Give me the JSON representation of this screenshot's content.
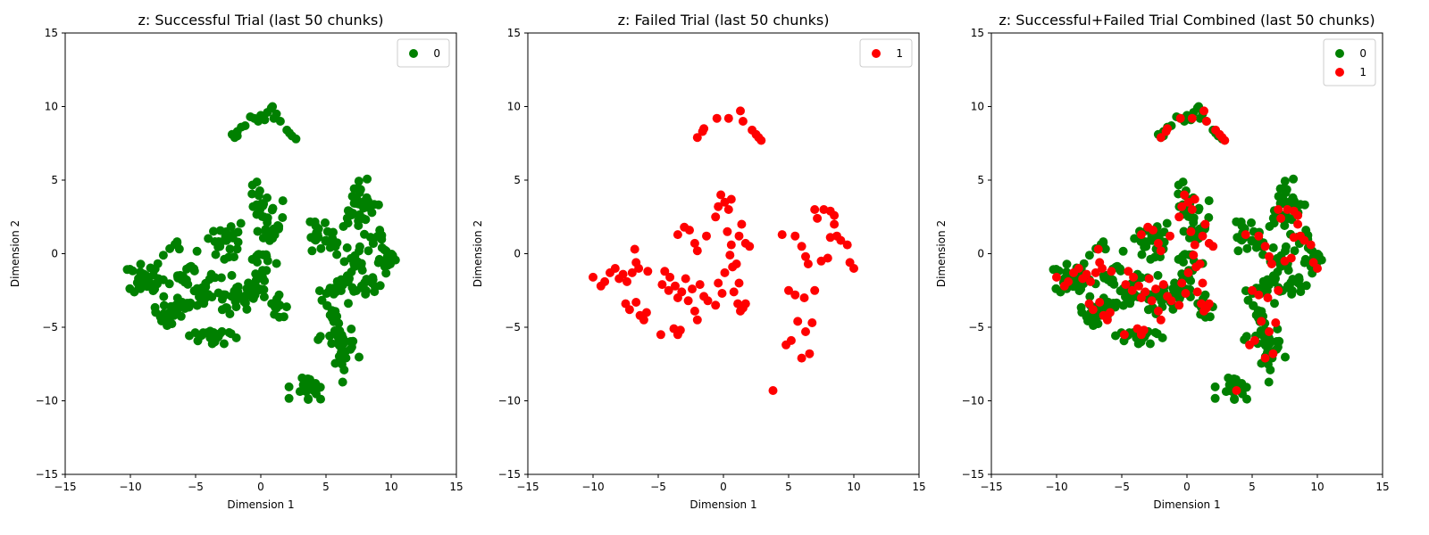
{
  "chart_data": [
    {
      "type": "scatter",
      "title": "z: Successful Trial (last 50 chunks)",
      "xlabel": "Dimension 1",
      "ylabel": "Dimension 2",
      "xlim": [
        -15,
        15
      ],
      "ylim": [
        -15,
        15
      ],
      "xticks": [
        -15,
        -10,
        -5,
        0,
        5,
        10,
        15
      ],
      "yticks": [
        -15,
        -10,
        -5,
        0,
        5,
        10,
        15
      ],
      "grid": false,
      "legend_position": "top-right",
      "series": [
        {
          "name": "0",
          "color": "#008000",
          "clusters": [
            {
              "points": [
                [
                  -2.2,
                  8.1
                ],
                [
                  -1.8,
                  8.3
                ],
                [
                  -1.5,
                  8.6
                ],
                [
                  -2.0,
                  7.9
                ],
                [
                  -1.2,
                  8.7
                ],
                [
                  -0.5,
                  9.2
                ],
                [
                  0.0,
                  9.4
                ],
                [
                  0.5,
                  9.6
                ],
                [
                  0.8,
                  9.9
                ],
                [
                  1.2,
                  9.5
                ],
                [
                  0.3,
                  9.1
                ],
                [
                  -0.2,
                  9.0
                ],
                [
                  1.5,
                  9.0
                ],
                [
                  2.0,
                  8.4
                ],
                [
                  2.4,
                  8.0
                ],
                [
                  2.7,
                  7.8
                ]
              ]
            },
            {
              "points": [
                [
                  -1.8,
                  8.0
                ],
                [
                  -0.8,
                  9.3
                ],
                [
                  0.9,
                  10.0
                ],
                [
                  1.0,
                  9.2
                ],
                [
                  2.2,
                  8.2
                ]
              ]
            },
            {
              "cx": -8.8,
              "cy": -1.6,
              "sx": 0.85,
              "sy": 0.5,
              "n": 34
            },
            {
              "cx": -6.5,
              "cy": -3.9,
              "sx": 0.7,
              "sy": 0.6,
              "n": 30
            },
            {
              "cx": -6.8,
              "cy": 0.5,
              "sx": 0.25,
              "sy": 0.3,
              "n": 6
            },
            {
              "cx": -5.7,
              "cy": -1.3,
              "sx": 0.6,
              "sy": 0.5,
              "n": 14
            },
            {
              "cx": -4.3,
              "cy": -2.6,
              "sx": 0.7,
              "sy": 0.6,
              "n": 22
            },
            {
              "cx": -3.8,
              "cy": -5.5,
              "sx": 0.85,
              "sy": 0.3,
              "n": 24
            },
            {
              "cx": -2.7,
              "cy": 0.9,
              "sx": 0.8,
              "sy": 0.8,
              "n": 26
            },
            {
              "cx": -2.0,
              "cy": -2.9,
              "sx": 0.8,
              "sy": 0.9,
              "n": 26
            },
            {
              "cx": -0.3,
              "cy": 3.2,
              "sx": 0.35,
              "sy": 0.7,
              "n": 18
            },
            {
              "cx": 0.5,
              "cy": 1.9,
              "sx": 0.6,
              "sy": 0.8,
              "n": 22
            },
            {
              "cx": 0.3,
              "cy": -0.5,
              "sx": 0.5,
              "sy": 0.5,
              "n": 12
            },
            {
              "cx": -0.5,
              "cy": -2.6,
              "sx": 0.6,
              "sy": 0.7,
              "n": 16
            },
            {
              "cx": 1.3,
              "cy": -3.6,
              "sx": 0.35,
              "sy": 0.35,
              "n": 14
            },
            {
              "cx": 4.3,
              "cy": 1.5,
              "sx": 0.3,
              "sy": 0.6,
              "n": 12
            },
            {
              "cx": 5.6,
              "cy": 0.6,
              "sx": 0.5,
              "sy": 0.6,
              "n": 12
            },
            {
              "cx": 7.6,
              "cy": 4.0,
              "sx": 0.4,
              "sy": 0.5,
              "n": 14
            },
            {
              "cx": 8.3,
              "cy": 3.2,
              "sx": 0.4,
              "sy": 0.5,
              "n": 12
            },
            {
              "cx": 7.3,
              "cy": 2.5,
              "sx": 0.5,
              "sy": 0.5,
              "n": 12
            },
            {
              "cx": 7.3,
              "cy": -0.7,
              "sx": 0.6,
              "sy": 0.7,
              "n": 20
            },
            {
              "cx": 9.2,
              "cy": 0.8,
              "sx": 0.5,
              "sy": 0.5,
              "n": 12
            },
            {
              "cx": 9.8,
              "cy": -0.4,
              "sx": 0.4,
              "sy": 0.4,
              "n": 14
            },
            {
              "cx": 6.5,
              "cy": -2.1,
              "sx": 0.5,
              "sy": 0.4,
              "n": 12
            },
            {
              "cx": 8.3,
              "cy": -2.3,
              "sx": 0.5,
              "sy": 0.4,
              "n": 12
            },
            {
              "cx": 5.2,
              "cy": -2.8,
              "sx": 0.4,
              "sy": 0.4,
              "n": 10
            },
            {
              "cx": 5.8,
              "cy": -4.2,
              "sx": 0.4,
              "sy": 0.5,
              "n": 10
            },
            {
              "cx": 5.4,
              "cy": -5.8,
              "sx": 0.7,
              "sy": 0.5,
              "n": 12
            },
            {
              "cx": 6.5,
              "cy": -6.3,
              "sx": 0.4,
              "sy": 0.5,
              "n": 12
            },
            {
              "cx": 6.1,
              "cy": -7.2,
              "sx": 0.4,
              "sy": 0.4,
              "n": 10
            },
            {
              "cx": 3.9,
              "cy": -9.1,
              "sx": 0.7,
              "sy": 0.4,
              "n": 24
            }
          ]
        }
      ]
    },
    {
      "type": "scatter",
      "title": "z: Failed Trial (last 50 chunks)",
      "xlabel": "Dimension 1",
      "ylabel": "Dimension 2",
      "xlim": [
        -15,
        15
      ],
      "ylim": [
        -15,
        15
      ],
      "xticks": [
        -15,
        -10,
        -5,
        0,
        5,
        10,
        15
      ],
      "yticks": [
        -15,
        -10,
        -5,
        0,
        5,
        10,
        15
      ],
      "grid": false,
      "legend_position": "top-right",
      "series": [
        {
          "name": "1",
          "color": "#ff0000",
          "points": [
            [
              -2.0,
              7.9
            ],
            [
              -1.6,
              8.3
            ],
            [
              -1.5,
              8.5
            ],
            [
              -0.5,
              9.2
            ],
            [
              0.4,
              9.2
            ],
            [
              1.3,
              9.7
            ],
            [
              1.5,
              9.0
            ],
            [
              2.2,
              8.4
            ],
            [
              2.5,
              8.1
            ],
            [
              2.7,
              7.9
            ],
            [
              2.9,
              7.7
            ],
            [
              -10.0,
              -1.6
            ],
            [
              -9.4,
              -2.2
            ],
            [
              -9.1,
              -1.9
            ],
            [
              -8.7,
              -1.3
            ],
            [
              -8.3,
              -1.0
            ],
            [
              -8.0,
              -1.7
            ],
            [
              -7.7,
              -1.4
            ],
            [
              -7.4,
              -1.9
            ],
            [
              -7.0,
              -1.3
            ],
            [
              -6.8,
              0.3
            ],
            [
              -6.7,
              -0.6
            ],
            [
              -6.5,
              -1.0
            ],
            [
              -5.8,
              -1.2
            ],
            [
              -7.5,
              -3.4
            ],
            [
              -7.2,
              -3.8
            ],
            [
              -6.7,
              -3.3
            ],
            [
              -6.4,
              -4.2
            ],
            [
              -6.1,
              -4.5
            ],
            [
              -5.9,
              -4.0
            ],
            [
              -4.8,
              -5.5
            ],
            [
              -4.2,
              -2.5
            ],
            [
              -4.5,
              -1.2
            ],
            [
              -4.7,
              -2.1
            ],
            [
              -4.1,
              -1.6
            ],
            [
              -3.7,
              -2.2
            ],
            [
              -3.5,
              -3.0
            ],
            [
              -3.8,
              -5.1
            ],
            [
              -3.5,
              -5.5
            ],
            [
              -3.3,
              -5.2
            ],
            [
              -3.2,
              -2.6
            ],
            [
              -2.9,
              -1.7
            ],
            [
              -2.7,
              -3.2
            ],
            [
              -2.4,
              -2.4
            ],
            [
              -2.2,
              -3.9
            ],
            [
              -2.0,
              -4.5
            ],
            [
              -1.8,
              -2.1
            ],
            [
              -1.5,
              -2.9
            ],
            [
              -1.2,
              -3.2
            ],
            [
              -0.6,
              -3.5
            ],
            [
              -0.4,
              -2.0
            ],
            [
              -3.5,
              1.3
            ],
            [
              -3.0,
              1.8
            ],
            [
              -2.6,
              1.6
            ],
            [
              -2.2,
              0.7
            ],
            [
              -2.0,
              0.2
            ],
            [
              -1.3,
              1.2
            ],
            [
              -0.6,
              2.5
            ],
            [
              -0.4,
              3.2
            ],
            [
              -0.2,
              4.0
            ],
            [
              0.1,
              3.5
            ],
            [
              0.4,
              3.0
            ],
            [
              0.6,
              3.7
            ],
            [
              0.3,
              1.5
            ],
            [
              0.6,
              0.6
            ],
            [
              1.2,
              1.2
            ],
            [
              1.4,
              2.0
            ],
            [
              1.7,
              0.7
            ],
            [
              0.5,
              -0.1
            ],
            [
              0.1,
              -1.3
            ],
            [
              0.7,
              -0.9
            ],
            [
              -0.1,
              -2.7
            ],
            [
              0.8,
              -2.6
            ],
            [
              1.1,
              -3.4
            ],
            [
              1.3,
              -3.9
            ],
            [
              1.5,
              -3.7
            ],
            [
              1.7,
              -3.4
            ],
            [
              1.2,
              -2.0
            ],
            [
              1.0,
              -0.7
            ],
            [
              2.0,
              0.5
            ],
            [
              4.5,
              1.3
            ],
            [
              5.5,
              1.2
            ],
            [
              6.0,
              0.5
            ],
            [
              6.3,
              -0.2
            ],
            [
              6.5,
              -0.7
            ],
            [
              7.0,
              3.0
            ],
            [
              7.2,
              2.4
            ],
            [
              7.7,
              3.0
            ],
            [
              8.2,
              2.9
            ],
            [
              8.5,
              2.6
            ],
            [
              8.5,
              2.0
            ],
            [
              8.7,
              1.2
            ],
            [
              9.0,
              0.9
            ],
            [
              9.5,
              0.6
            ],
            [
              9.7,
              -0.6
            ],
            [
              10.0,
              -1.0
            ],
            [
              8.2,
              1.1
            ],
            [
              8.0,
              -0.3
            ],
            [
              7.5,
              -0.5
            ],
            [
              5.0,
              -2.5
            ],
            [
              5.5,
              -2.8
            ],
            [
              6.2,
              -3.0
            ],
            [
              7.0,
              -2.5
            ],
            [
              6.8,
              -4.7
            ],
            [
              5.7,
              -4.6
            ],
            [
              6.3,
              -5.3
            ],
            [
              5.2,
              -5.9
            ],
            [
              4.8,
              -6.2
            ],
            [
              6.0,
              -7.1
            ],
            [
              6.6,
              -6.8
            ],
            [
              3.8,
              -9.3
            ]
          ]
        }
      ]
    },
    {
      "type": "scatter",
      "title": "z: Successful+Failed Trial Combined (last 50 chunks)",
      "xlabel": "Dimension 1",
      "ylabel": "Dimension 2",
      "xlim": [
        -15,
        15
      ],
      "ylim": [
        -15,
        15
      ],
      "xticks": [
        -15,
        -10,
        -5,
        0,
        5,
        10,
        15
      ],
      "yticks": [
        -15,
        -10,
        -5,
        0,
        5,
        10,
        15
      ],
      "grid": false,
      "legend_position": "top-right",
      "series": [
        {
          "name": "0",
          "color": "#008000",
          "same_as": "0:0"
        },
        {
          "name": "1",
          "color": "#ff0000",
          "same_as": "1:0"
        }
      ]
    }
  ]
}
